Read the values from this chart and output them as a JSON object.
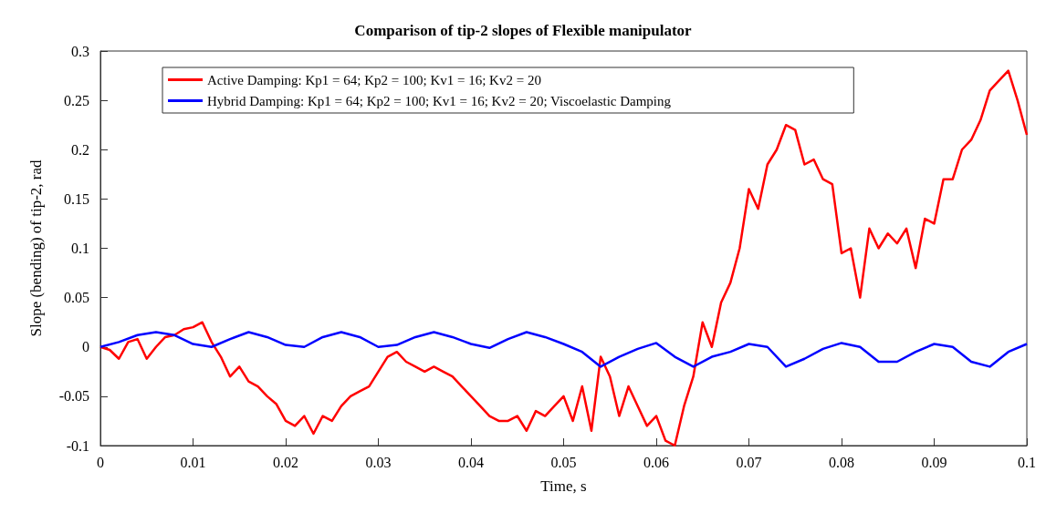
{
  "chart_data": {
    "type": "line",
    "title": "Comparison of tip-2 slopes of Flexible manipulator",
    "xlabel": "Time, s",
    "ylabel": "Slope (bending) of tip-2, rad",
    "xlim": [
      0,
      0.1
    ],
    "xticks": [
      0,
      0.01,
      0.02,
      0.03,
      0.04,
      0.05,
      0.06,
      0.07,
      0.08,
      0.09,
      0.1
    ],
    "ylim": [
      -0.1,
      0.3
    ],
    "yticks": [
      -0.1,
      -0.05,
      0,
      0.05,
      0.1,
      0.15,
      0.2,
      0.25,
      0.3
    ],
    "grid": false,
    "legend": "top left",
    "marker": "none",
    "line_style": "solid",
    "series": [
      {
        "name": "Active Damping: Kp1 = 64; Kp2 = 100; Kv1 = 16; Kv2 = 20",
        "color": "#ff0000",
        "x": [
          0,
          0.001,
          0.002,
          0.003,
          0.004,
          0.005,
          0.006,
          0.007,
          0.008,
          0.009,
          0.01,
          0.011,
          0.012,
          0.013,
          0.014,
          0.015,
          0.016,
          0.017,
          0.018,
          0.019,
          0.02,
          0.021,
          0.022,
          0.023,
          0.024,
          0.025,
          0.026,
          0.027,
          0.028,
          0.029,
          0.03,
          0.031,
          0.032,
          0.033,
          0.034,
          0.035,
          0.036,
          0.037,
          0.038,
          0.039,
          0.04,
          0.041,
          0.042,
          0.043,
          0.044,
          0.045,
          0.046,
          0.047,
          0.048,
          0.049,
          0.05,
          0.051,
          0.052,
          0.053,
          0.054,
          0.055,
          0.056,
          0.057,
          0.058,
          0.059,
          0.06,
          0.061,
          0.062,
          0.063,
          0.064,
          0.065,
          0.066,
          0.067,
          0.068,
          0.069,
          0.07,
          0.071,
          0.072,
          0.073,
          0.074,
          0.075,
          0.076,
          0.077,
          0.078,
          0.079,
          0.08,
          0.081,
          0.082,
          0.083,
          0.084,
          0.085,
          0.086,
          0.087,
          0.088,
          0.089,
          0.09,
          0.091,
          0.092,
          0.093,
          0.094,
          0.095,
          0.096,
          0.097,
          0.098,
          0.099,
          0.1
        ],
        "values": [
          0,
          -0.003,
          -0.012,
          0.005,
          0.008,
          -0.012,
          0,
          0.01,
          0.012,
          0.018,
          0.02,
          0.025,
          0.005,
          -0.01,
          -0.03,
          -0.02,
          -0.035,
          -0.04,
          -0.05,
          -0.058,
          -0.075,
          -0.08,
          -0.07,
          -0.088,
          -0.07,
          -0.075,
          -0.06,
          -0.05,
          -0.045,
          -0.04,
          -0.025,
          -0.01,
          -0.005,
          -0.015,
          -0.02,
          -0.025,
          -0.02,
          -0.025,
          -0.03,
          -0.04,
          -0.05,
          -0.06,
          -0.07,
          -0.075,
          -0.075,
          -0.07,
          -0.085,
          -0.065,
          -0.07,
          -0.06,
          -0.05,
          -0.075,
          -0.04,
          -0.085,
          -0.01,
          -0.03,
          -0.07,
          -0.04,
          -0.06,
          -0.08,
          -0.07,
          -0.095,
          -0.1,
          -0.06,
          -0.03,
          0.025,
          0,
          0.045,
          0.065,
          0.1,
          0.16,
          0.14,
          0.185,
          0.2,
          0.225,
          0.22,
          0.185,
          0.19,
          0.17,
          0.165,
          0.095,
          0.1,
          0.05,
          0.12,
          0.1,
          0.115,
          0.105,
          0.12,
          0.08,
          0.13,
          0.125,
          0.17,
          0.17,
          0.2,
          0.21,
          0.23,
          0.26,
          0.27,
          0.28,
          0.25,
          0.215
        ]
      },
      {
        "name": "Hybrid Damping: Kp1 = 64; Kp2 = 100; Kv1 = 16; Kv2 = 20; Viscoelastic Damping",
        "color": "#0000ff",
        "x": [
          0,
          0.002,
          0.004,
          0.006,
          0.008,
          0.01,
          0.012,
          0.014,
          0.016,
          0.018,
          0.02,
          0.022,
          0.024,
          0.026,
          0.028,
          0.03,
          0.032,
          0.034,
          0.036,
          0.038,
          0.04,
          0.042,
          0.044,
          0.046,
          0.048,
          0.05,
          0.052,
          0.054,
          0.056,
          0.058,
          0.06,
          0.062,
          0.064,
          0.066,
          0.068,
          0.07,
          0.072,
          0.074,
          0.076,
          0.078,
          0.08,
          0.082,
          0.084,
          0.086,
          0.088,
          0.09,
          0.092,
          0.094,
          0.096,
          0.098,
          0.1
        ],
        "values": [
          0,
          0.005,
          0.012,
          0.015,
          0.012,
          0.003,
          0,
          0.008,
          0.015,
          0.01,
          0.002,
          0,
          0.01,
          0.015,
          0.01,
          0,
          0.002,
          0.01,
          0.015,
          0.01,
          0.003,
          -0.001,
          0.008,
          0.015,
          0.01,
          0.003,
          -0.005,
          -0.02,
          -0.01,
          -0.002,
          0.004,
          -0.01,
          -0.02,
          -0.01,
          -0.005,
          0.003,
          0,
          -0.02,
          -0.012,
          -0.002,
          0.004,
          0,
          -0.015,
          -0.015,
          -0.005,
          0.003,
          0,
          -0.015,
          -0.02,
          -0.005,
          0.003
        ]
      }
    ]
  }
}
